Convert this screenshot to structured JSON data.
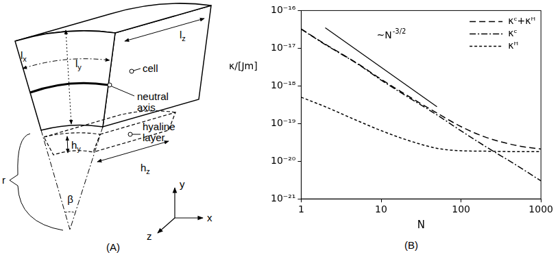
{
  "diagram": {
    "panel_label": "(A)",
    "labels": {
      "lx": {
        "text": "l",
        "subscript": "x"
      },
      "ly": {
        "text": "l",
        "subscript": "y"
      },
      "lz": {
        "text": "l",
        "subscript": "z"
      },
      "hy": {
        "text": "h",
        "subscript": "y"
      },
      "hz": {
        "text": "h",
        "subscript": "z"
      },
      "cell": "cell",
      "neutral_axis": "neutral axis",
      "hyaline": "hyaline layer",
      "r": "r",
      "beta": "β",
      "axis_x": "x",
      "axis_y": "y",
      "axis_z": "z"
    }
  },
  "chart_data": {
    "type": "line",
    "panel_label": "(B)",
    "x_label": "N",
    "y_label": "κ/[Jm]",
    "log": true,
    "grid": false,
    "legend": "top right",
    "xlim": [
      1,
      1000
    ],
    "xticks": [
      1,
      10,
      100,
      1000
    ],
    "ylim": [
      1e-21,
      1e-16
    ],
    "yticks": [
      {
        "value": 1e-21,
        "label": "10⁻²¹"
      },
      {
        "value": 1e-20,
        "label": "10⁻²⁰"
      },
      {
        "value": 1e-19,
        "label": "10⁻¹⁹"
      },
      {
        "value": 1e-18,
        "label": "10⁻¹⁸"
      },
      {
        "value": 1e-17,
        "label": "10⁻¹⁷"
      },
      {
        "value": 1e-16,
        "label": "10⁻¹⁶"
      }
    ],
    "x": [
      1,
      2,
      5,
      10,
      20,
      50,
      100,
      200,
      500,
      1000
    ],
    "series": [
      {
        "name": "κᶜ+κᴴ",
        "color": "#000000",
        "line_style": "dashed",
        "values": [
          3.25e-17,
          1.28e-17,
          4e-18,
          1.5e-18,
          6e-19,
          1.9e-19,
          8.3e-20,
          4.4e-20,
          2.6e-20,
          2.1e-20
        ]
      },
      {
        "name": "κᶜ",
        "color": "#000000",
        "line_style": "dashdot",
        "values": [
          3.2e-17,
          1.25e-17,
          3.9e-18,
          1.43e-18,
          5.6e-19,
          1.7e-19,
          6.4e-20,
          2.5e-20,
          7.7e-21,
          3e-21
        ]
      },
      {
        "name": "κᴴ",
        "color": "#000000",
        "line_style": "short_dashed",
        "values": [
          5e-19,
          2.8e-19,
          1.2e-19,
          6.5e-20,
          3.8e-20,
          2.2e-20,
          1.9e-20,
          1.85e-20,
          1.8e-20,
          1.8e-20
        ]
      }
    ],
    "annotations": [
      {
        "type": "line",
        "x": [
          2,
          50
        ],
        "y": [
          3.5e-17,
          2.8e-19
        ],
        "color": "#000000",
        "line_style": "solid",
        "text": "~N",
        "superscript": "-3/2"
      }
    ]
  }
}
